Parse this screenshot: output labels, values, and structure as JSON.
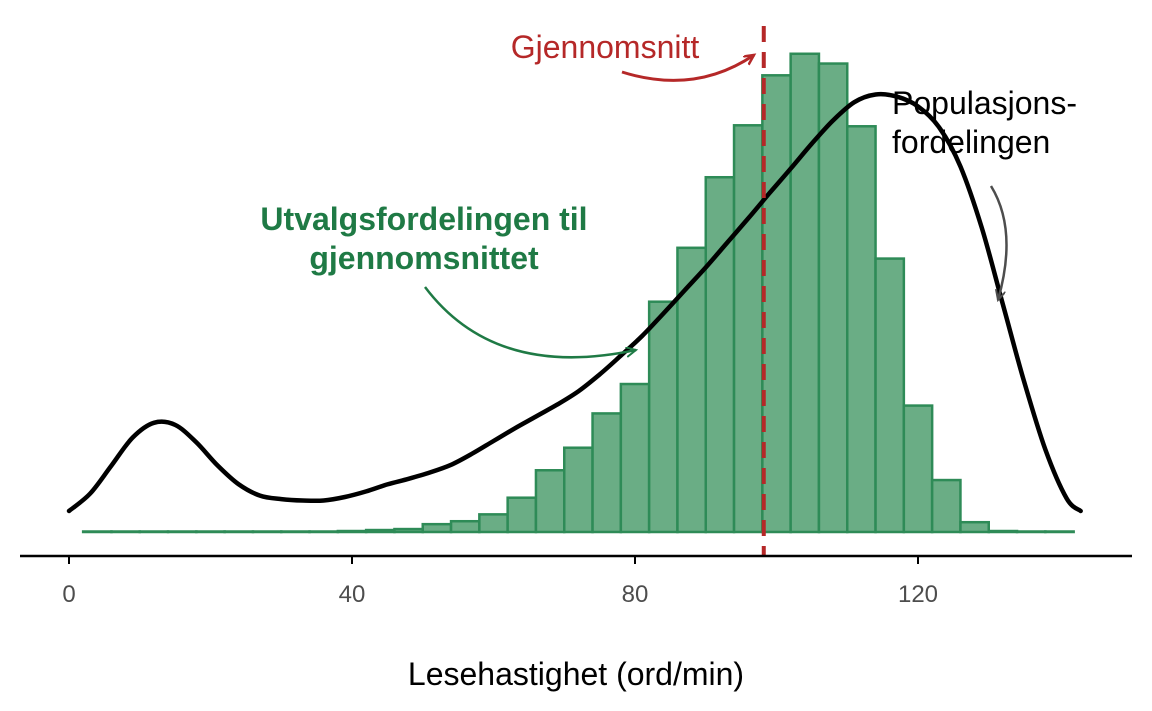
{
  "chart_data": {
    "type": "bar",
    "xlabel": "Lesehastighet (ord/min)",
    "xlim": [
      -7,
      150
    ],
    "x_ticks": [
      0,
      40,
      80,
      120
    ],
    "x_tick_labels": [
      "0",
      "40",
      "80",
      "120"
    ],
    "bin_width": 4,
    "histogram": {
      "name": "Utvalgsfordelingen til gjennomsnittet",
      "bin_starts": [
        2,
        6,
        10,
        14,
        18,
        22,
        26,
        30,
        34,
        38,
        42,
        46,
        50,
        54,
        58,
        62,
        66,
        70,
        74,
        78,
        82,
        86,
        90,
        94,
        98,
        102,
        106,
        110,
        114,
        118,
        122,
        126,
        130,
        134,
        138
      ],
      "counts": [
        0,
        0,
        0,
        0,
        0,
        0,
        0,
        0,
        0,
        1,
        2,
        3,
        8,
        11,
        18,
        35,
        63,
        86,
        121,
        151,
        235,
        290,
        362,
        415,
        466,
        488,
        478,
        414,
        279,
        129,
        53,
        10,
        1,
        0,
        0
      ],
      "ylim": [
        0,
        500
      ]
    },
    "population_density": {
      "name": "Populasjonsfordelingen",
      "x": [
        0,
        3,
        6,
        9,
        12,
        15,
        18,
        21,
        24,
        27,
        30,
        33,
        36,
        39,
        42,
        45,
        48,
        51,
        54,
        57,
        60,
        63,
        66,
        69,
        72,
        75,
        78,
        81,
        84,
        87,
        90,
        93,
        96,
        99,
        102,
        105,
        108,
        111,
        114,
        117,
        120,
        123,
        126,
        129,
        132,
        135,
        138,
        141,
        143
      ],
      "density": [
        0.003,
        0.0055,
        0.0095,
        0.0135,
        0.0156,
        0.0153,
        0.0128,
        0.0095,
        0.0068,
        0.0052,
        0.0047,
        0.0045,
        0.0045,
        0.005,
        0.0058,
        0.0068,
        0.0076,
        0.0085,
        0.0096,
        0.0112,
        0.013,
        0.0148,
        0.0165,
        0.0182,
        0.0201,
        0.0225,
        0.0252,
        0.028,
        0.0312,
        0.0345,
        0.0378,
        0.0413,
        0.0448,
        0.0484,
        0.0519,
        0.0555,
        0.0588,
        0.0614,
        0.0625,
        0.0622,
        0.0608,
        0.0578,
        0.0522,
        0.0435,
        0.0325,
        0.0215,
        0.0118,
        0.0048,
        0.003
      ],
      "ylim": [
        0,
        0.07
      ]
    },
    "mean": 98.2,
    "annotations": {
      "mean_label": "Gjennomsnitt",
      "sampling_label_line1": "Utvalgsfordelingen til",
      "sampling_label_line2": "gjennomsnittet",
      "population_label_line1": "Populasjons-",
      "population_label_line2": "fordelingen"
    },
    "colors": {
      "bar_fill": "#6aad85",
      "bar_stroke": "#2e8b57",
      "sampling_text": "#1f7a45",
      "mean_line": "#b52828",
      "population_line": "#000000",
      "population_arrow": "#4d4d4d",
      "axis": "#000000"
    },
    "grid": false,
    "legend": "none"
  }
}
